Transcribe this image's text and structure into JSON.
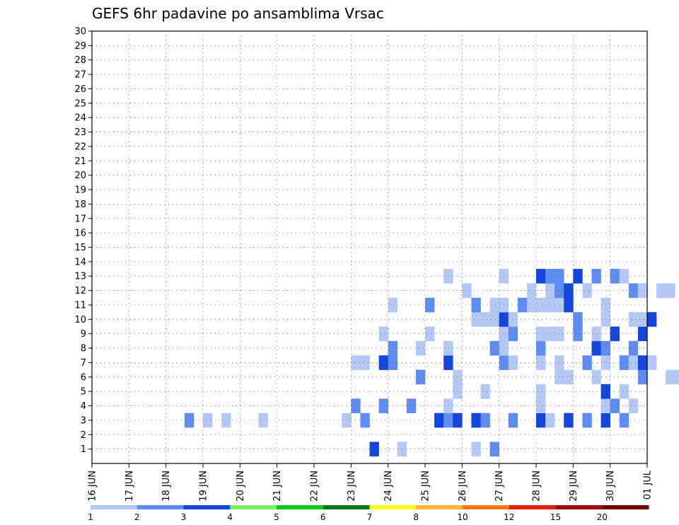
{
  "chart_data": {
    "type": "heatmap",
    "title": "GEFS 6hr padavine po ansamblima Vrsac",
    "xlabel": "",
    "ylabel": "",
    "x_ticks": [
      "16 JUN",
      "17 JUN",
      "18 JUN",
      "19 JUN",
      "20 JUN",
      "21 JUN",
      "22 JUN",
      "23 JUN",
      "24 JUN",
      "25 JUN",
      "26 JUN",
      "27 JUN",
      "28 JUN",
      "29 JUN",
      "30 JUN",
      "01 JUL"
    ],
    "y_ticks": [
      "1",
      "2",
      "3",
      "4",
      "5",
      "6",
      "7",
      "8",
      "9",
      "10",
      "11",
      "12",
      "13",
      "14",
      "15",
      "16",
      "17",
      "18",
      "19",
      "20",
      "21",
      "22",
      "23",
      "24",
      "25",
      "26",
      "27",
      "28",
      "29",
      "30"
    ],
    "ylim": [
      0,
      30
    ],
    "xlim_days": [
      0,
      15
    ],
    "grid": true,
    "colorbar": {
      "labels": [
        "1",
        "2",
        "3",
        "4",
        "5",
        "6",
        "7",
        "8",
        "10",
        "12",
        "15",
        "20"
      ],
      "colors": [
        "#b4c8f5",
        "#5f8cf0",
        "#1446dc",
        "#78f064",
        "#14c814",
        "#0a7814",
        "#ffff14",
        "#ffb43c",
        "#ff7814",
        "#e61e0a",
        "#a00a0a",
        "#6e0000"
      ]
    },
    "cells": [
      [
        1,
        30,
        2
      ],
      [
        1,
        33,
        0
      ],
      [
        1,
        41,
        0
      ],
      [
        1,
        43,
        1
      ],
      [
        3,
        10,
        1
      ],
      [
        3,
        12,
        0
      ],
      [
        3,
        14,
        0
      ],
      [
        3,
        18,
        0
      ],
      [
        3,
        27,
        0
      ],
      [
        3,
        29,
        1
      ],
      [
        3,
        37,
        2
      ],
      [
        3,
        38,
        1
      ],
      [
        3,
        39,
        2
      ],
      [
        3,
        41,
        2
      ],
      [
        3,
        42,
        1
      ],
      [
        3,
        45,
        1
      ],
      [
        3,
        48,
        2
      ],
      [
        3,
        49,
        0
      ],
      [
        3,
        51,
        2
      ],
      [
        3,
        53,
        1
      ],
      [
        3,
        55,
        2
      ],
      [
        3,
        57,
        1
      ],
      [
        4,
        28,
        1
      ],
      [
        4,
        31,
        1
      ],
      [
        4,
        34,
        1
      ],
      [
        4,
        38,
        0
      ],
      [
        4,
        48,
        0
      ],
      [
        4,
        55,
        0
      ],
      [
        4,
        56,
        1
      ],
      [
        4,
        58,
        0
      ],
      [
        5,
        39,
        0
      ],
      [
        5,
        42,
        0
      ],
      [
        5,
        48,
        0
      ],
      [
        5,
        55,
        2
      ],
      [
        5,
        57,
        0
      ],
      [
        6,
        35,
        1
      ],
      [
        6,
        39,
        0
      ],
      [
        6,
        50,
        0
      ],
      [
        6,
        51,
        0
      ],
      [
        6,
        54,
        0
      ],
      [
        6,
        59,
        1
      ],
      [
        6,
        62,
        0
      ],
      [
        6,
        63,
        0
      ],
      [
        7,
        28,
        0
      ],
      [
        7,
        29,
        0
      ],
      [
        7,
        31,
        2
      ],
      [
        7,
        32,
        1
      ],
      [
        7,
        38,
        2
      ],
      [
        7,
        44,
        1
      ],
      [
        7,
        45,
        0
      ],
      [
        7,
        48,
        0
      ],
      [
        7,
        50,
        0
      ],
      [
        7,
        53,
        1
      ],
      [
        7,
        55,
        0
      ],
      [
        7,
        57,
        1
      ],
      [
        7,
        58,
        0
      ],
      [
        7,
        59,
        2
      ],
      [
        7,
        60,
        0
      ],
      [
        8,
        32,
        1
      ],
      [
        8,
        35,
        0
      ],
      [
        8,
        38,
        0
      ],
      [
        8,
        43,
        1
      ],
      [
        8,
        44,
        0
      ],
      [
        8,
        48,
        1
      ],
      [
        8,
        54,
        2
      ],
      [
        8,
        55,
        1
      ],
      [
        8,
        58,
        1
      ],
      [
        9,
        31,
        0
      ],
      [
        9,
        36,
        0
      ],
      [
        9,
        44,
        0
      ],
      [
        9,
        45,
        1
      ],
      [
        9,
        48,
        0
      ],
      [
        9,
        49,
        0
      ],
      [
        9,
        50,
        0
      ],
      [
        9,
        52,
        1
      ],
      [
        9,
        54,
        0
      ],
      [
        9,
        56,
        2
      ],
      [
        9,
        59,
        2
      ],
      [
        10,
        41,
        0
      ],
      [
        10,
        42,
        0
      ],
      [
        10,
        43,
        0
      ],
      [
        10,
        44,
        2
      ],
      [
        10,
        45,
        0
      ],
      [
        10,
        52,
        1
      ],
      [
        10,
        55,
        0
      ],
      [
        10,
        58,
        0
      ],
      [
        10,
        59,
        0
      ],
      [
        10,
        60,
        2
      ],
      [
        11,
        32,
        0
      ],
      [
        11,
        36,
        1
      ],
      [
        11,
        41,
        1
      ],
      [
        11,
        43,
        0
      ],
      [
        11,
        44,
        0
      ],
      [
        11,
        46,
        1
      ],
      [
        11,
        47,
        0
      ],
      [
        11,
        48,
        0
      ],
      [
        11,
        49,
        0
      ],
      [
        11,
        50,
        0
      ],
      [
        11,
        51,
        2
      ],
      [
        11,
        55,
        0
      ],
      [
        12,
        40,
        0
      ],
      [
        12,
        47,
        0
      ],
      [
        12,
        49,
        0
      ],
      [
        12,
        50,
        1
      ],
      [
        12,
        51,
        2
      ],
      [
        12,
        53,
        0
      ],
      [
        12,
        58,
        1
      ],
      [
        12,
        59,
        0
      ],
      [
        12,
        61,
        0
      ],
      [
        12,
        62,
        0
      ],
      [
        13,
        38,
        0
      ],
      [
        13,
        44,
        0
      ],
      [
        13,
        48,
        2
      ],
      [
        13,
        49,
        1
      ],
      [
        13,
        50,
        1
      ],
      [
        13,
        52,
        2
      ],
      [
        13,
        54,
        1
      ],
      [
        13,
        56,
        1
      ],
      [
        13,
        57,
        0
      ]
    ],
    "cells_color_index_note": "row ensemble 1-30 mapped via index table below",
    "ensemble_index": {
      "1": [
        [
          1,
          30,
          2
        ],
        [
          1,
          33,
          0
        ],
        [
          1,
          41,
          0
        ],
        [
          1,
          43,
          1
        ]
      ]
    }
  }
}
